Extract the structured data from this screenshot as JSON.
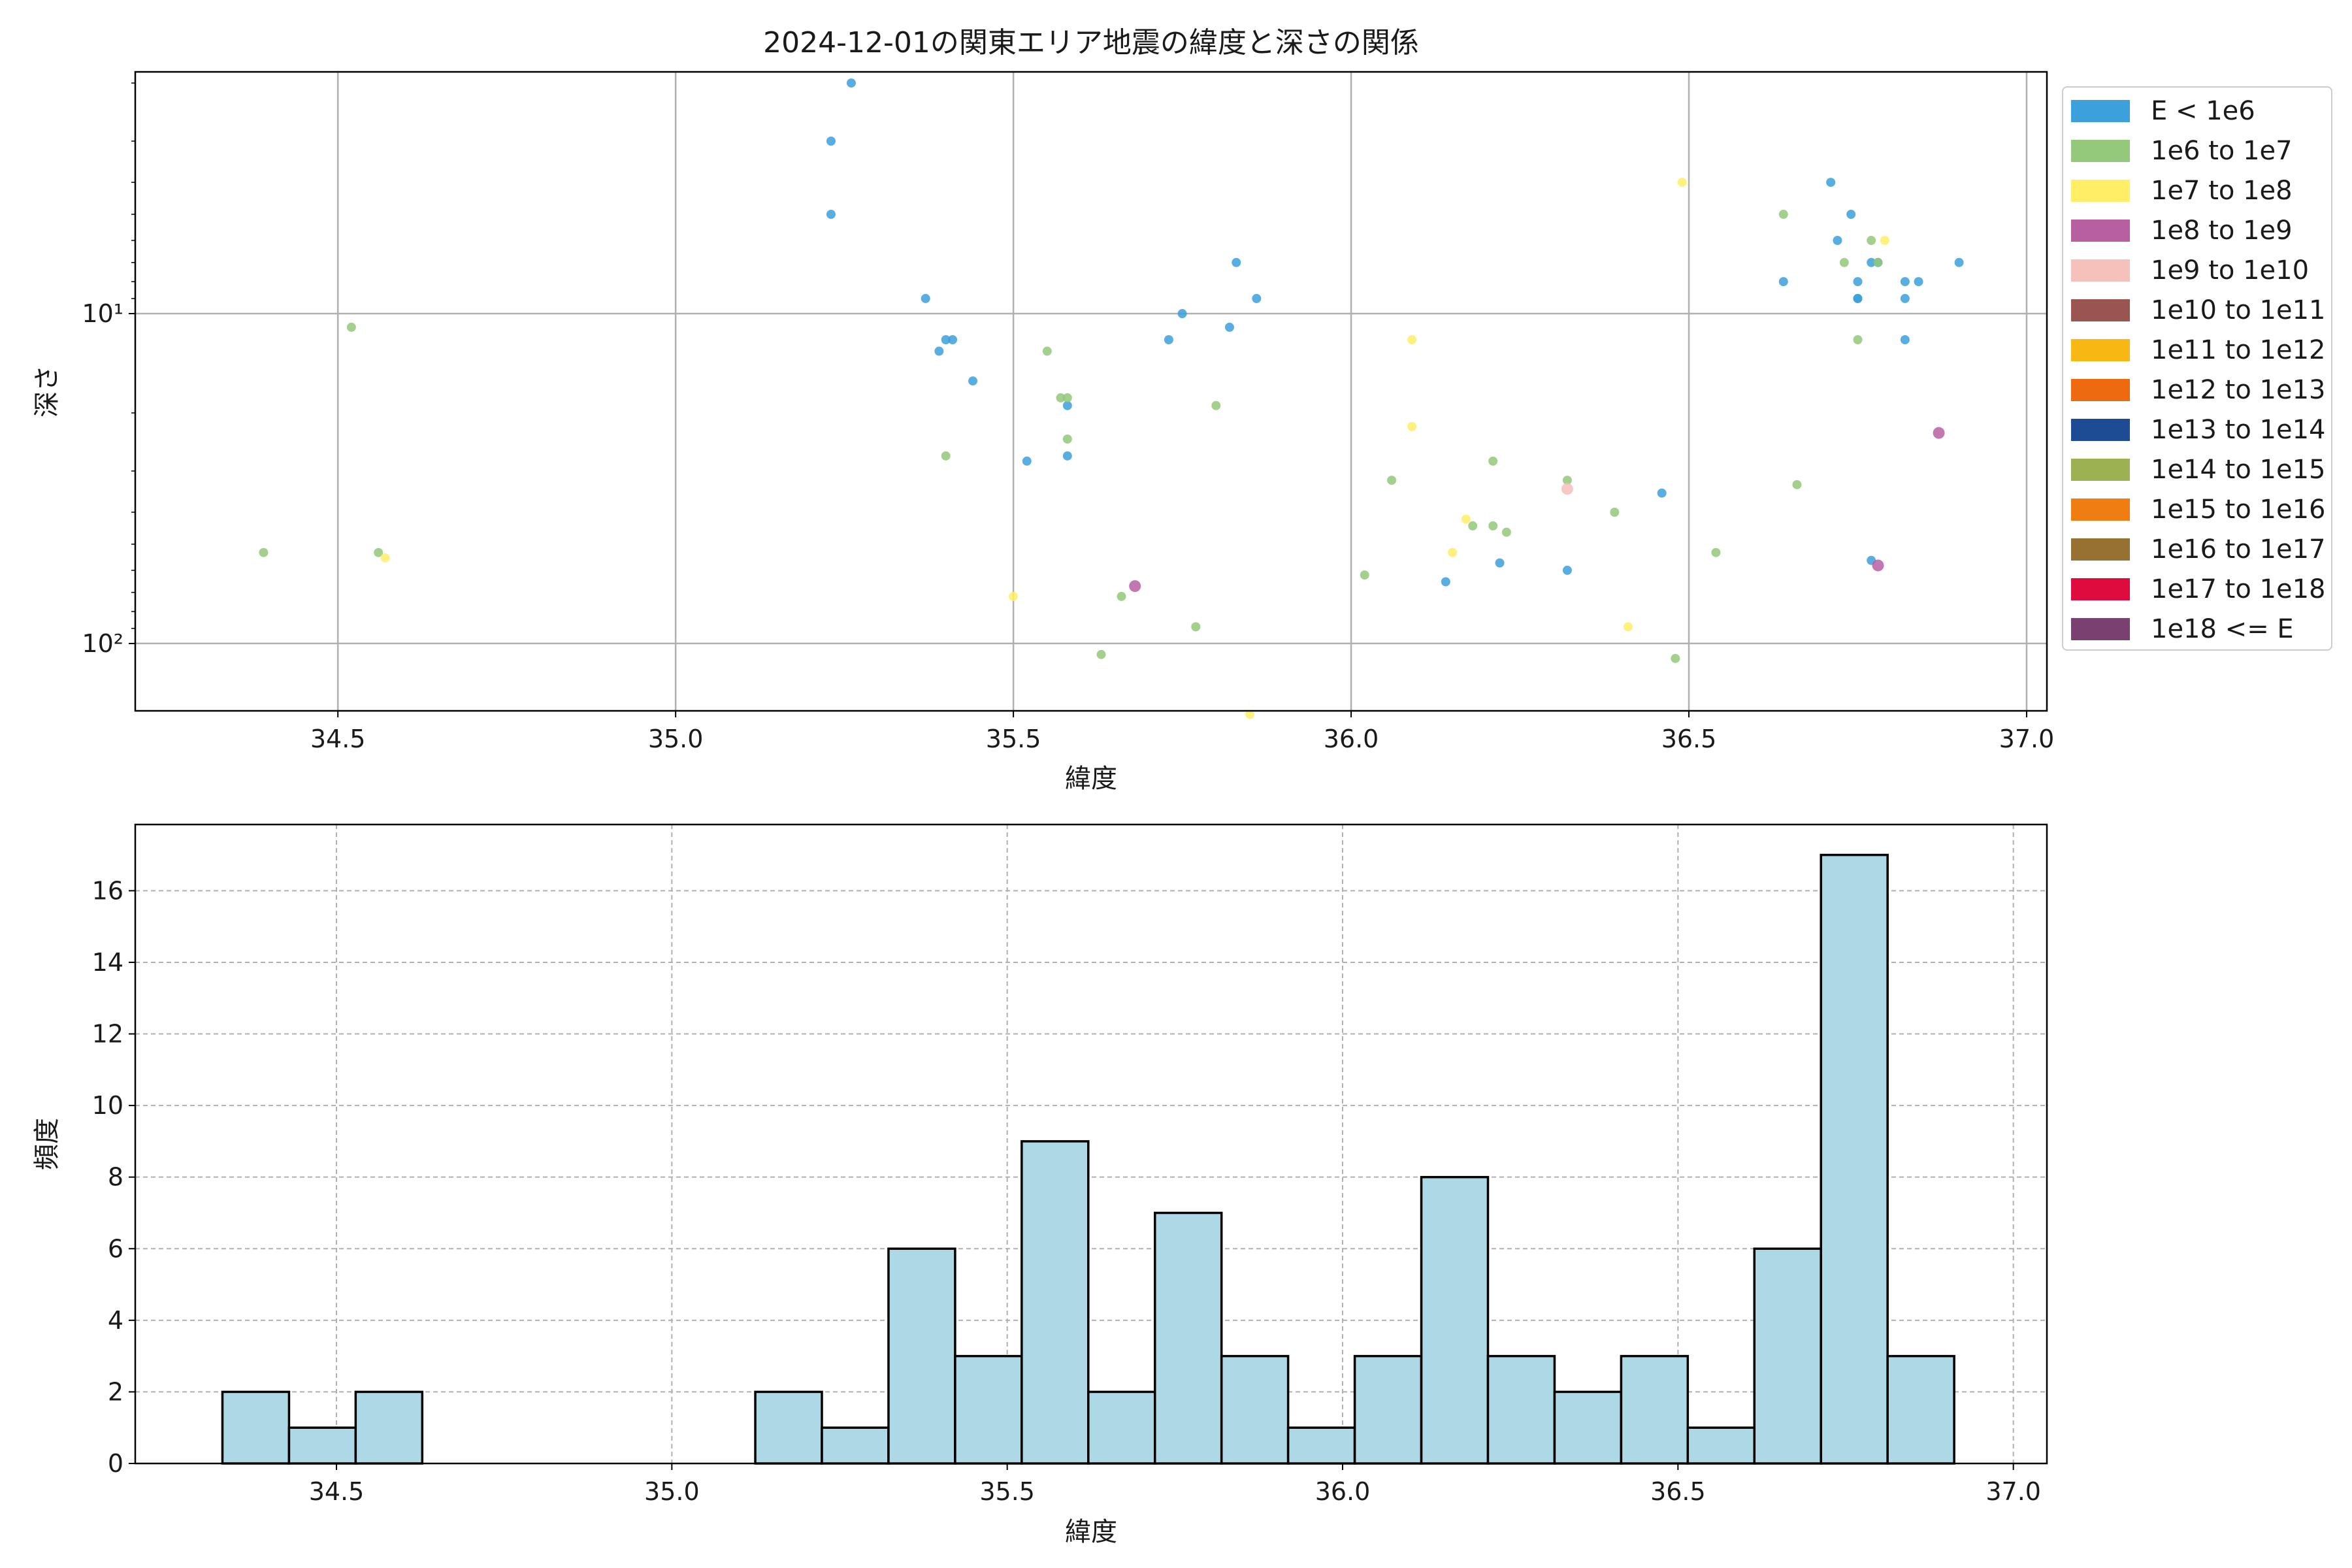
{
  "figure": {
    "title": "2024-12-01の関東エリア地震の緯度と深さの関係"
  },
  "legend": {
    "items": [
      {
        "label": "E < 1e6",
        "color": "#3ca0dc"
      },
      {
        "label": "1e6 to 1e7",
        "color": "#94c87a"
      },
      {
        "label": "1e7 to 1e8",
        "color": "#ffee66"
      },
      {
        "label": "1e8 to 1e9",
        "color": "#b85fa2"
      },
      {
        "label": "1e9 to 1e10",
        "color": "#f6c0bb"
      },
      {
        "label": "1e10 to 1e11",
        "color": "#9a5550"
      },
      {
        "label": "1e11 to 1e12",
        "color": "#f8b813"
      },
      {
        "label": "1e12 to 1e13",
        "color": "#ee6a10"
      },
      {
        "label": "1e13 to 1e14",
        "color": "#1d4c94"
      },
      {
        "label": "1e14 to 1e15",
        "color": "#9cb152"
      },
      {
        "label": "1e15 to 1e16",
        "color": "#ef7d12"
      },
      {
        "label": "1e16 to 1e17",
        "color": "#967132"
      },
      {
        "label": "1e17 to 1e18",
        "color": "#de0b3f"
      },
      {
        "label": "1e18 <= E",
        "color": "#7a4070"
      }
    ]
  },
  "chart_data": [
    {
      "type": "scatter",
      "title": "2024-12-01の関東エリア地震の緯度と深さの関係",
      "xlabel": "緯度",
      "ylabel": "深さ",
      "xlim": [
        34.2,
        37.03
      ],
      "ylim": [
        160,
        1.85
      ],
      "yscale": "log",
      "y_inverted": true,
      "grid": true,
      "legend_position": "outside-right",
      "xticks": [
        34.5,
        35.0,
        35.5,
        36.0,
        36.5,
        37.0
      ],
      "xtick_labels": [
        "34.5",
        "35.0",
        "35.5",
        "36.0",
        "36.5",
        "37.0"
      ],
      "yticks": [
        10,
        100
      ],
      "ytick_labels": [
        "10¹",
        "10²"
      ],
      "points": [
        {
          "x": 35.26,
          "y": 2.0,
          "c": 0
        },
        {
          "x": 35.23,
          "y": 3.0,
          "c": 0
        },
        {
          "x": 35.23,
          "y": 5.0,
          "c": 0
        },
        {
          "x": 35.37,
          "y": 9.0,
          "c": 0
        },
        {
          "x": 35.39,
          "y": 13.0,
          "c": 0
        },
        {
          "x": 35.4,
          "y": 12.0,
          "c": 0
        },
        {
          "x": 35.41,
          "y": 12.0,
          "c": 0
        },
        {
          "x": 35.44,
          "y": 16.0,
          "c": 0
        },
        {
          "x": 35.52,
          "y": 28.0,
          "c": 0
        },
        {
          "x": 35.58,
          "y": 19.0,
          "c": 0
        },
        {
          "x": 35.58,
          "y": 27.0,
          "c": 0
        },
        {
          "x": 35.73,
          "y": 12.0,
          "c": 0
        },
        {
          "x": 35.75,
          "y": 10.0,
          "c": 0
        },
        {
          "x": 35.82,
          "y": 11.0,
          "c": 0
        },
        {
          "x": 35.83,
          "y": 7.0,
          "c": 0
        },
        {
          "x": 35.86,
          "y": 9.0,
          "c": 0
        },
        {
          "x": 36.14,
          "y": 65.0,
          "c": 0
        },
        {
          "x": 36.22,
          "y": 57.0,
          "c": 0
        },
        {
          "x": 36.32,
          "y": 60.0,
          "c": 0
        },
        {
          "x": 36.46,
          "y": 35.0,
          "c": 0
        },
        {
          "x": 36.64,
          "y": 8.0,
          "c": 0
        },
        {
          "x": 36.71,
          "y": 4.0,
          "c": 0
        },
        {
          "x": 36.72,
          "y": 6.0,
          "c": 0
        },
        {
          "x": 36.74,
          "y": 5.0,
          "c": 0
        },
        {
          "x": 36.75,
          "y": 8.0,
          "c": 0
        },
        {
          "x": 36.75,
          "y": 9.0,
          "c": 0
        },
        {
          "x": 36.75,
          "y": 9.0,
          "c": 0
        },
        {
          "x": 36.77,
          "y": 7.0,
          "c": 0
        },
        {
          "x": 36.78,
          "y": 7.0,
          "c": 0
        },
        {
          "x": 36.77,
          "y": 56.0,
          "c": 0
        },
        {
          "x": 36.82,
          "y": 8.0,
          "c": 0
        },
        {
          "x": 36.82,
          "y": 9.0,
          "c": 0
        },
        {
          "x": 36.82,
          "y": 12.0,
          "c": 0
        },
        {
          "x": 36.84,
          "y": 8.0,
          "c": 0
        },
        {
          "x": 36.9,
          "y": 7.0,
          "c": 0
        },
        {
          "x": 34.39,
          "y": 53.0,
          "c": 1
        },
        {
          "x": 34.52,
          "y": 11.0,
          "c": 1
        },
        {
          "x": 34.56,
          "y": 53.0,
          "c": 1
        },
        {
          "x": 35.4,
          "y": 27.0,
          "c": 1
        },
        {
          "x": 35.55,
          "y": 13.0,
          "c": 1
        },
        {
          "x": 35.57,
          "y": 18.0,
          "c": 1
        },
        {
          "x": 35.58,
          "y": 18.0,
          "c": 1
        },
        {
          "x": 35.58,
          "y": 24.0,
          "c": 1
        },
        {
          "x": 35.63,
          "y": 108.0,
          "c": 1
        },
        {
          "x": 35.66,
          "y": 72.0,
          "c": 1
        },
        {
          "x": 35.77,
          "y": 89.0,
          "c": 1
        },
        {
          "x": 35.8,
          "y": 19.0,
          "c": 1
        },
        {
          "x": 36.02,
          "y": 62.0,
          "c": 1
        },
        {
          "x": 36.06,
          "y": 32.0,
          "c": 1
        },
        {
          "x": 36.18,
          "y": 44.0,
          "c": 1
        },
        {
          "x": 36.21,
          "y": 28.0,
          "c": 1
        },
        {
          "x": 36.21,
          "y": 44.0,
          "c": 1
        },
        {
          "x": 36.23,
          "y": 46.0,
          "c": 1
        },
        {
          "x": 36.32,
          "y": 32.0,
          "c": 1
        },
        {
          "x": 36.39,
          "y": 40.0,
          "c": 1
        },
        {
          "x": 36.48,
          "y": 111.0,
          "c": 1
        },
        {
          "x": 36.54,
          "y": 53.0,
          "c": 1
        },
        {
          "x": 36.64,
          "y": 5.0,
          "c": 1
        },
        {
          "x": 36.66,
          "y": 33.0,
          "c": 1
        },
        {
          "x": 36.73,
          "y": 7.0,
          "c": 1
        },
        {
          "x": 36.75,
          "y": 12.0,
          "c": 1
        },
        {
          "x": 36.77,
          "y": 6.0,
          "c": 1
        },
        {
          "x": 36.78,
          "y": 7.0,
          "c": 1
        },
        {
          "x": 34.57,
          "y": 55.0,
          "c": 2
        },
        {
          "x": 35.5,
          "y": 72.0,
          "c": 2
        },
        {
          "x": 35.85,
          "y": 164.0,
          "c": 2
        },
        {
          "x": 36.09,
          "y": 12.0,
          "c": 2
        },
        {
          "x": 36.09,
          "y": 22.0,
          "c": 2
        },
        {
          "x": 36.15,
          "y": 53.0,
          "c": 2
        },
        {
          "x": 36.17,
          "y": 42.0,
          "c": 2
        },
        {
          "x": 36.41,
          "y": 89.0,
          "c": 2
        },
        {
          "x": 36.49,
          "y": 4.0,
          "c": 2
        },
        {
          "x": 36.79,
          "y": 6.0,
          "c": 2
        },
        {
          "x": 35.68,
          "y": 67.0,
          "c": 3
        },
        {
          "x": 36.78,
          "y": 58.0,
          "c": 3
        },
        {
          "x": 36.87,
          "y": 23.0,
          "c": 3
        },
        {
          "x": 36.32,
          "y": 34.0,
          "c": 4
        }
      ]
    },
    {
      "type": "bar",
      "title": "",
      "xlabel": "緯度",
      "ylabel": "頻度",
      "xlim": [
        34.2,
        37.05
      ],
      "ylim": [
        0,
        17.85
      ],
      "grid": true,
      "grid_style": "dashed",
      "bar_color": "#add8e6",
      "edge_color": "#000000",
      "xticks": [
        34.5,
        35.0,
        35.5,
        36.0,
        36.5,
        37.0
      ],
      "xtick_labels": [
        "34.5",
        "35.0",
        "35.5",
        "36.0",
        "36.5",
        "37.0"
      ],
      "yticks": [
        0,
        2,
        4,
        6,
        8,
        10,
        12,
        14,
        16
      ],
      "bin_start": 34.33,
      "bin_width": 0.0993,
      "counts": [
        2,
        1,
        2,
        0,
        0,
        0,
        0,
        0,
        2,
        1,
        6,
        3,
        9,
        2,
        7,
        3,
        1,
        3,
        8,
        3,
        2,
        3,
        1,
        6,
        17,
        3
      ]
    }
  ]
}
